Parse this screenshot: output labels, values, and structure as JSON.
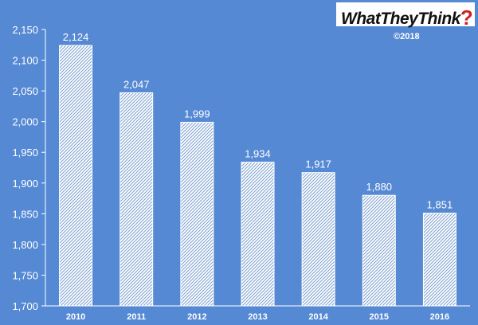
{
  "brand": {
    "logo_text": "WhatTheyThink",
    "logo_mark": "?",
    "logo_mark_color": "#d21f1f",
    "copyright": "©2018"
  },
  "colors": {
    "background": "#5589d4",
    "bar_fill": "#ffffff",
    "bar_hatch": "#7d9fd0",
    "axis": "#ffffff",
    "text": "#ffffff"
  },
  "chart_data": {
    "type": "bar",
    "title": "",
    "xlabel": "",
    "ylabel": "",
    "categories": [
      "2010",
      "2011",
      "2012",
      "2013",
      "2014",
      "2015",
      "2016"
    ],
    "values": [
      2124,
      2047,
      1999,
      1934,
      1917,
      1880,
      1851
    ],
    "data_labels": [
      "2,124",
      "2,047",
      "1,999",
      "1,934",
      "1,917",
      "1,880",
      "1,851"
    ],
    "ylim": [
      1700,
      2150
    ],
    "yticks": [
      1700,
      1750,
      1800,
      1850,
      1900,
      1950,
      2000,
      2050,
      2100,
      2150
    ],
    "ytick_labels": [
      "1,700",
      "1,750",
      "1,800",
      "1,850",
      "1,900",
      "1,950",
      "2,000",
      "2,050",
      "2,100",
      "2,150"
    ],
    "grid": false,
    "legend": "none"
  }
}
